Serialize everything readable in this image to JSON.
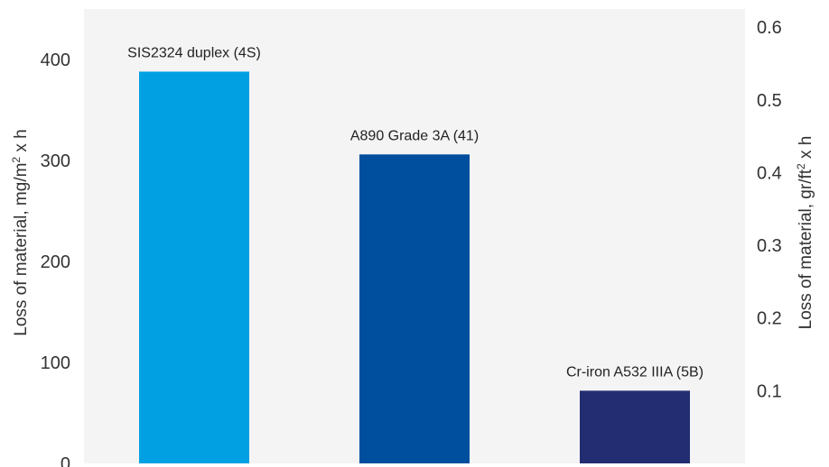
{
  "chart_data": {
    "type": "bar",
    "categories": [
      "SIS2324 duplex (4S)",
      "A890 Grade 3A (41)",
      "Cr-iron A532 IIIA (5B)"
    ],
    "values": [
      388,
      306,
      72
    ],
    "bar_colors": [
      "#00a0e3",
      "#004f9e",
      "#232e72"
    ],
    "background_color": "#f4f4f4",
    "title": "",
    "ylabel_parts": [
      "Loss of material, mg/m",
      "2",
      " x h"
    ],
    "y2label_parts": [
      "Loss of material, gr/ft",
      "2",
      " x h"
    ],
    "ylim": [
      0,
      450
    ],
    "yticks": [
      "0",
      "100",
      "200",
      "300",
      "400"
    ],
    "y2_ticks": [
      "0.1",
      "0.2",
      "0.3",
      "0.4",
      "0.5",
      "0.6"
    ],
    "y2_tick_values": [
      0.1,
      0.2,
      0.3,
      0.4,
      0.5,
      0.6
    ],
    "y2_per_y": 0.0013889,
    "grid": false,
    "legend": "none"
  }
}
